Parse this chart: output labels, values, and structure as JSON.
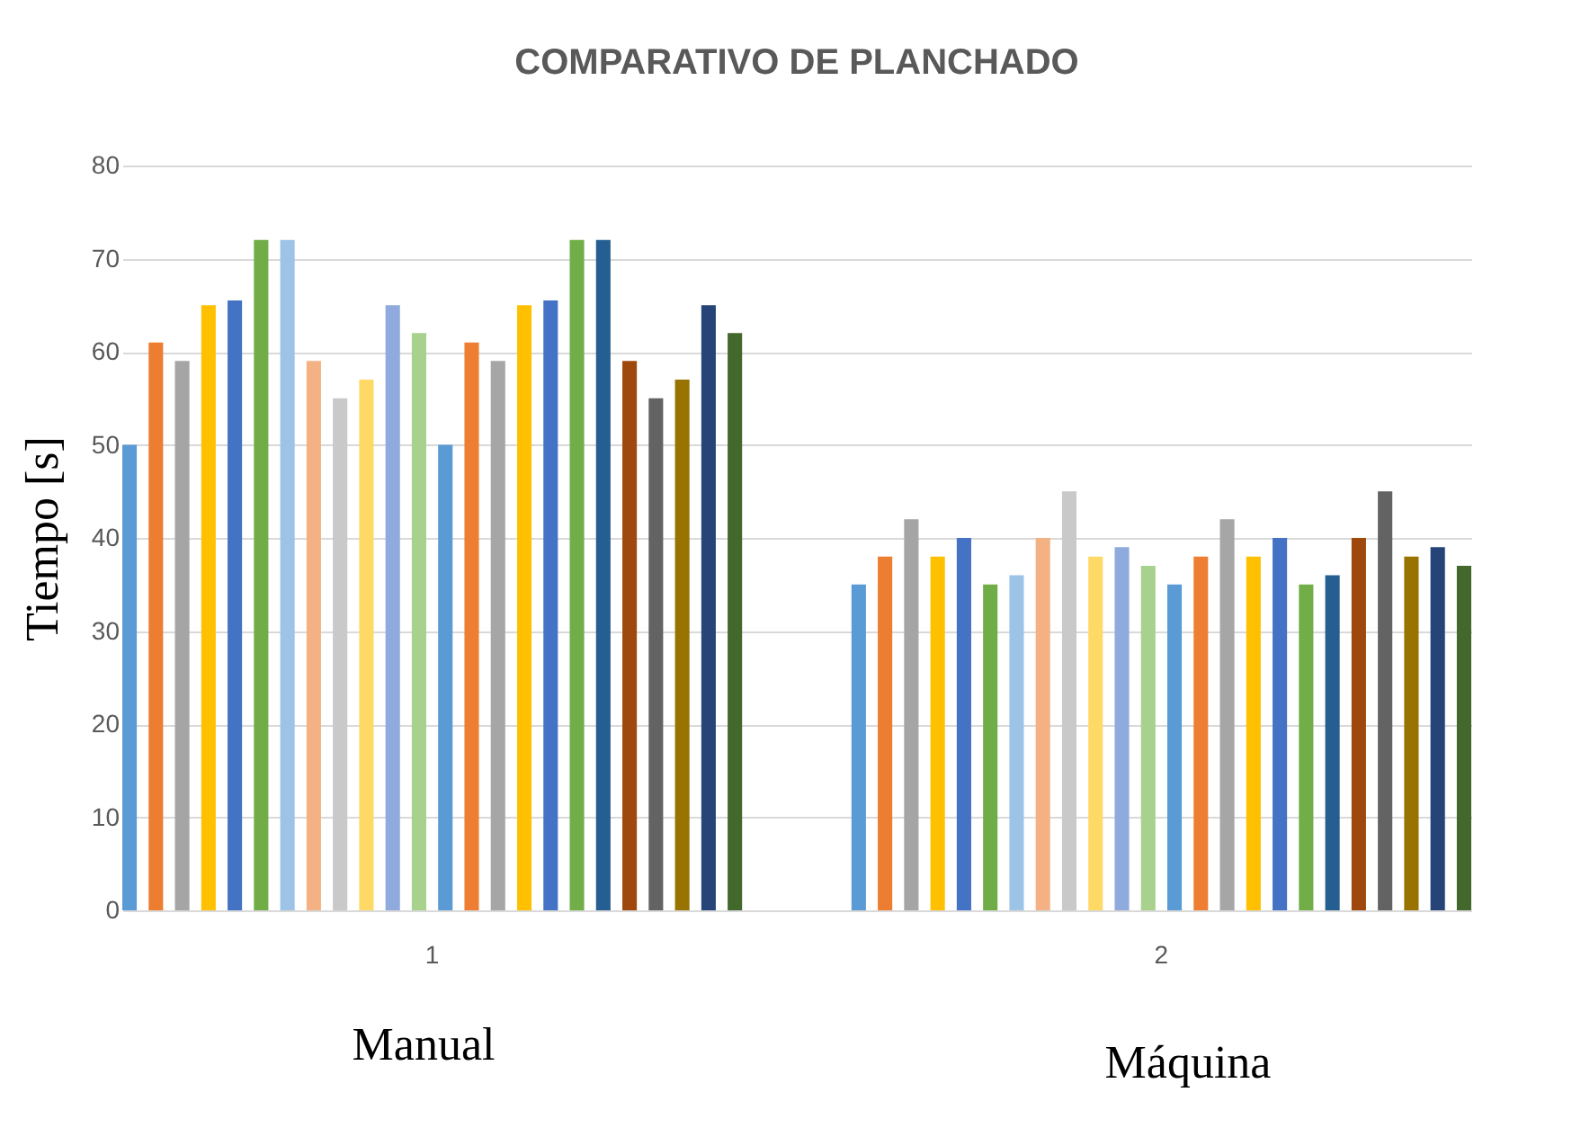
{
  "chart_data": {
    "type": "bar",
    "title": "COMPARATIVO DE PLANCHADO",
    "ylabel": "Tiempo [s]",
    "categories": [
      "1",
      "2"
    ],
    "annotations": [
      "Manual",
      "Máquina"
    ],
    "ylim": [
      0,
      80
    ],
    "yticks": [
      0,
      10,
      20,
      30,
      40,
      50,
      60,
      70,
      80
    ],
    "grid": "y",
    "legend": false,
    "series": [
      {
        "color": "#5b9bd5",
        "values": [
          50,
          35
        ]
      },
      {
        "color": "#ed7d31",
        "values": [
          61,
          38
        ]
      },
      {
        "color": "#a5a5a5",
        "values": [
          59,
          42
        ]
      },
      {
        "color": "#ffc000",
        "values": [
          65,
          38
        ]
      },
      {
        "color": "#4472c4",
        "values": [
          65.5,
          40
        ]
      },
      {
        "color": "#70ad47",
        "values": [
          72,
          35
        ]
      },
      {
        "color": "#9dc3e6",
        "values": [
          72,
          36
        ]
      },
      {
        "color": "#f4b183",
        "values": [
          59,
          40
        ]
      },
      {
        "color": "#c9c9c9",
        "values": [
          55,
          45
        ]
      },
      {
        "color": "#ffd966",
        "values": [
          57,
          38
        ]
      },
      {
        "color": "#8faadc",
        "values": [
          65,
          39
        ]
      },
      {
        "color": "#a9d18e",
        "values": [
          62,
          37
        ]
      },
      {
        "color": "#5a9bd6",
        "values": [
          50,
          35
        ]
      },
      {
        "color": "#ee7e32",
        "values": [
          61,
          38
        ]
      },
      {
        "color": "#a6a6a6",
        "values": [
          59,
          42
        ]
      },
      {
        "color": "#ffc001",
        "values": [
          65,
          38
        ]
      },
      {
        "color": "#4473c5",
        "values": [
          65.5,
          40
        ]
      },
      {
        "color": "#71ae48",
        "values": [
          72,
          35
        ]
      },
      {
        "color": "#255e91",
        "values": [
          72,
          36
        ]
      },
      {
        "color": "#9e480e",
        "values": [
          59,
          40
        ]
      },
      {
        "color": "#636363",
        "values": [
          55,
          45
        ]
      },
      {
        "color": "#997300",
        "values": [
          57,
          38
        ]
      },
      {
        "color": "#264478",
        "values": [
          65,
          39
        ]
      },
      {
        "color": "#43682b",
        "values": [
          62,
          37
        ]
      }
    ]
  }
}
